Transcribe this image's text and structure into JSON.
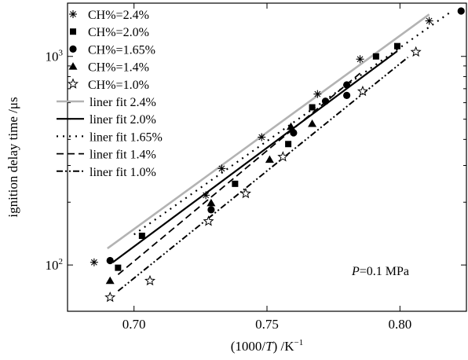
{
  "chart_data": {
    "type": "scatter",
    "annotation": {
      "variable": "P",
      "value": "=0.1 MPa"
    },
    "xlabel": {
      "pre": "(1000/",
      "var": "T",
      "post": ") /K",
      "sup": "−1"
    },
    "ylabel": "ignition delay time /μs",
    "x_range": [
      0.675,
      0.825
    ],
    "y_range": [
      60,
      1800
    ],
    "y_scale": "log",
    "x_ticks": [
      {
        "value": 0.7,
        "label": "0.70"
      },
      {
        "value": 0.75,
        "label": "0.75"
      },
      {
        "value": 0.8,
        "label": "0.80"
      }
    ],
    "y_ticks_major": [
      {
        "value": 100,
        "base": "10",
        "exp": "2"
      },
      {
        "value": 1000,
        "base": "10",
        "exp": "3"
      }
    ],
    "y_ticks_minor": [
      200,
      300,
      400,
      500,
      600,
      700,
      800,
      900
    ],
    "grid": false,
    "legend_position": "top-left",
    "series": [
      {
        "name": "CH%=2.4%",
        "marker": "asterisk",
        "points": [
          [
            0.685,
            103
          ],
          [
            0.727,
            216
          ],
          [
            0.733,
            290
          ],
          [
            0.748,
            410
          ],
          [
            0.769,
            660
          ],
          [
            0.785,
            970
          ],
          [
            0.811,
            1480
          ]
        ]
      },
      {
        "name": "CH%=2.0%",
        "marker": "square",
        "points": [
          [
            0.694,
            97
          ],
          [
            0.703,
            138
          ],
          [
            0.738,
            245
          ],
          [
            0.758,
            380
          ],
          [
            0.767,
            570
          ],
          [
            0.791,
            1000
          ],
          [
            0.799,
            1120
          ]
        ]
      },
      {
        "name": "CH%=1.65%",
        "marker": "circle",
        "points": [
          [
            0.691,
            105
          ],
          [
            0.729,
            184
          ],
          [
            0.76,
            430
          ],
          [
            0.772,
            610
          ],
          [
            0.78,
            650
          ],
          [
            0.78,
            730
          ],
          [
            0.823,
            1650
          ]
        ]
      },
      {
        "name": "CH%=1.4%",
        "marker": "triangle",
        "points": [
          [
            0.691,
            84
          ],
          [
            0.729,
            198
          ],
          [
            0.751,
            320
          ],
          [
            0.759,
            460
          ],
          [
            0.767,
            475
          ]
        ]
      },
      {
        "name": "CH%=1.0%",
        "marker": "star",
        "points": [
          [
            0.691,
            70
          ],
          [
            0.706,
            84
          ],
          [
            0.728,
            162
          ],
          [
            0.742,
            220
          ],
          [
            0.756,
            330
          ],
          [
            0.786,
            680
          ],
          [
            0.806,
            1050
          ]
        ]
      }
    ],
    "fits": [
      {
        "name": "liner fit 2.4%",
        "style": "solid-gray",
        "from": [
          0.69,
          120
        ],
        "to": [
          0.811,
          1590
        ]
      },
      {
        "name": "liner fit 2.0%",
        "style": "solid",
        "from": [
          0.692,
          103
        ],
        "to": [
          0.799,
          1060
        ]
      },
      {
        "name": "liner fit 1.65%",
        "style": "dotted",
        "from": [
          0.7,
          140
        ],
        "to": [
          0.819,
          1630
        ]
      },
      {
        "name": "liner fit 1.4%",
        "style": "dashed",
        "from": [
          0.694,
          90
        ],
        "to": [
          0.785,
          830
        ]
      },
      {
        "name": "liner fit 1.0%",
        "style": "dashdotdot",
        "from": [
          0.694,
          75
        ],
        "to": [
          0.803,
          990
        ]
      }
    ]
  }
}
